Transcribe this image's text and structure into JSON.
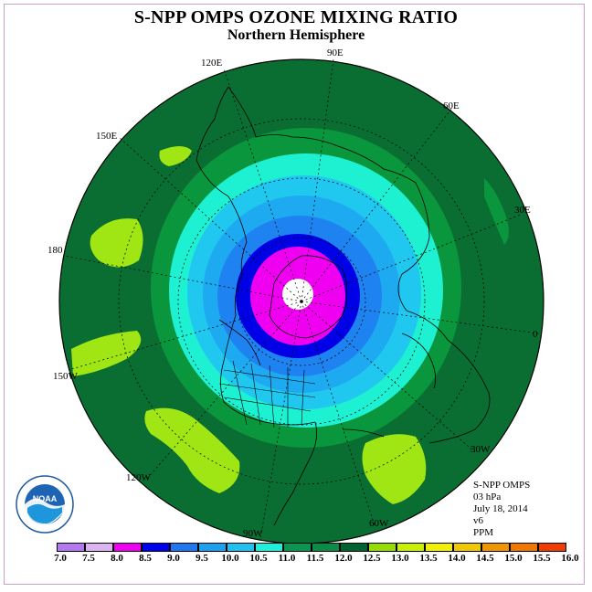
{
  "title": "S-NPP OMPS OZONE MIXING RATIO",
  "subtitle": "Northern Hemisphere",
  "longitude_labels": {
    "e90": "90E",
    "e60": "60E",
    "e30": "30E",
    "zero": "0",
    "w30": "30W",
    "w60": "60W",
    "w90": "90W",
    "w120": "120W",
    "w150": "150W",
    "d180": "180",
    "e150": "150E",
    "e120": "120E"
  },
  "info": {
    "instrument": "S-NPP OMPS",
    "level": "03 hPa",
    "date": "July 18, 2014",
    "version": "v6",
    "units": "PPM"
  },
  "logo_text": "NOAA",
  "colorbar": {
    "colors": [
      "#b478f0",
      "#dcb4f0",
      "#f000f0",
      "#0000f0",
      "#1e78f0",
      "#1ea0f0",
      "#20c0f0",
      "#1ef0dc",
      "#0a9650",
      "#0a8c46",
      "#006432",
      "#96dc00",
      "#c8f000",
      "#f0f000",
      "#f0c800",
      "#f09600",
      "#f07800",
      "#f03c00",
      "#f00000",
      "#a05028",
      "#8c5028"
    ],
    "tick_labels": [
      "7.0",
      "7.5",
      "8.0",
      "8.5",
      "9.0",
      "9.5",
      "10.0",
      "10.5",
      "11.0",
      "11.5",
      "12.0",
      "12.5",
      "13.0",
      "13.5",
      "14.0",
      "14.5",
      "15.0",
      "15.5",
      "16.0"
    ]
  },
  "field_colors": {
    "outer": "#0a6e32",
    "ring11_5": "#0a963c",
    "ring11": "#1ef0d2",
    "ring10_5": "#20c8f0",
    "ring10": "#1eaaf0",
    "ring9_5": "#1e82f0",
    "ring8_5": "#0000e6",
    "core": "#f000f0",
    "hole": "#ffffff",
    "lime": "#a0e614"
  }
}
